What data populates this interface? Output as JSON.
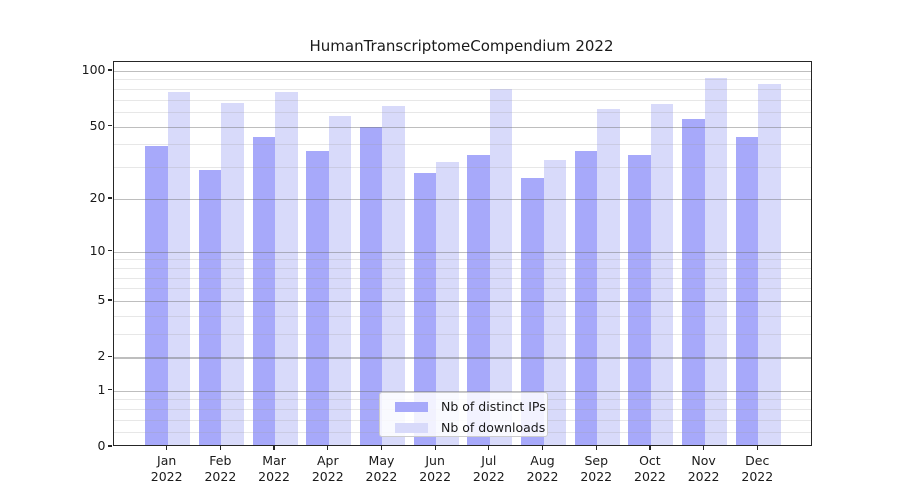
{
  "chart_data": {
    "type": "bar",
    "title": "HumanTranscriptomeCompendium 2022",
    "categories": [
      "Jan",
      "Feb",
      "Mar",
      "Apr",
      "May",
      "Jun",
      "Jul",
      "Aug",
      "Sep",
      "Oct",
      "Nov",
      "Dec"
    ],
    "x_year_label": "2022",
    "series": [
      {
        "name": "Nb of distinct IPs",
        "color": "#a7a9fa",
        "values": [
          39,
          29,
          44,
          37,
          50,
          28,
          35,
          26,
          37,
          35,
          55,
          44
        ]
      },
      {
        "name": "Nb of downloads",
        "color": "#d8dafa",
        "values": [
          77,
          67,
          77,
          57,
          65,
          32,
          80,
          33,
          62,
          66,
          91,
          85
        ]
      }
    ],
    "y_axis": {
      "scale": "symlog-ln(1+v)",
      "ylim": [
        0,
        112
      ],
      "major_ticks": [
        0,
        1,
        2,
        5,
        10,
        20,
        50,
        100
      ],
      "major_tick_labels": [
        "0",
        "1",
        "2",
        "5",
        "10",
        "20",
        "50",
        "100"
      ],
      "minor_ticks": [
        0.2,
        0.4,
        0.6,
        0.8,
        3,
        4,
        6,
        7,
        8,
        9,
        30,
        40,
        60,
        70,
        80,
        90
      ],
      "grid": "on"
    },
    "legend": {
      "position": "lower center",
      "entries": [
        "Nb of distinct IPs",
        "Nb of downloads"
      ]
    },
    "colors": {
      "grid_major": "rgba(110,110,110,0.45)",
      "grid_minor": "rgba(160,160,160,0.25)",
      "spine": "#262626",
      "text": "#1a1a1a",
      "background": "#ffffff"
    }
  }
}
